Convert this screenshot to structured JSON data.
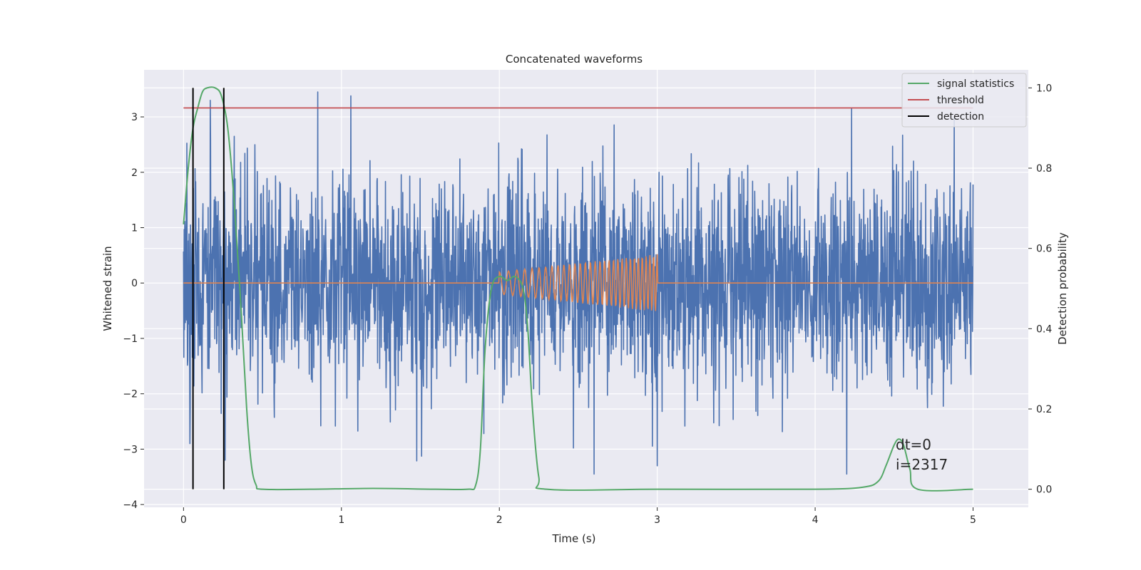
{
  "chart_data": {
    "type": "line",
    "title": "Concatenated waveforms",
    "xlabel": "Time (s)",
    "ylabel": "Whitened strain",
    "y2label": "Detection probability",
    "xlim": [
      -0.25,
      5.35
    ],
    "ylim": [
      -4.05,
      3.85
    ],
    "y2lim": [
      -0.045,
      1.045
    ],
    "x_ticks": [
      0,
      1,
      2,
      3,
      4,
      5
    ],
    "y_ticks": [
      -4,
      -3,
      -2,
      -1,
      0,
      1,
      2,
      3
    ],
    "y2_ticks": [
      0.0,
      0.2,
      0.4,
      0.6,
      0.8,
      1.0
    ],
    "x_tick_labels": [
      "0",
      "1",
      "2",
      "3",
      "4",
      "5"
    ],
    "y_tick_labels": [
      "−4",
      "−3",
      "−2",
      "−1",
      "0",
      "1",
      "2",
      "3"
    ],
    "y2_tick_labels": [
      "0.0",
      "0.2",
      "0.4",
      "0.6",
      "0.8",
      "1.0"
    ],
    "grid": true,
    "legend_position": "top-right",
    "series": [
      {
        "name": "",
        "axis": "left",
        "color": "#4c72b0",
        "kind": "noise",
        "x_range": [
          0,
          5
        ],
        "std": 0.95,
        "min": -3.65,
        "max": 3.45,
        "peaks": [
          {
            "x": 0.17,
            "y": 3.3
          },
          {
            "x": 0.85,
            "y": 3.45
          },
          {
            "x": 1.06,
            "y": 3.38
          },
          {
            "x": 4.23,
            "y": 3.15
          },
          {
            "x": 4.88,
            "y": 3.0
          },
          {
            "x": 2.6,
            "y": -3.45
          },
          {
            "x": 3.0,
            "y": -3.3
          },
          {
            "x": 4.2,
            "y": -3.45
          },
          {
            "x": 0.04,
            "y": -2.9
          }
        ]
      },
      {
        "name": "",
        "axis": "left",
        "color": "#dd8452",
        "kind": "chirp",
        "x_range": [
          0,
          5
        ],
        "chirp_x_range": [
          2.0,
          3.0
        ],
        "amplitude_start": 0.2,
        "amplitude_end": 0.52,
        "cycles": 30
      },
      {
        "name": "signal statistics",
        "axis": "right",
        "color": "#55a868",
        "x": [
          0.0,
          0.03,
          0.06,
          0.09,
          0.12,
          0.15,
          0.2,
          0.24,
          0.28,
          0.32,
          0.36,
          0.4,
          0.43,
          0.46,
          0.5,
          0.8,
          1.2,
          1.6,
          1.8,
          1.85,
          1.88,
          1.91,
          1.95,
          2.0,
          2.05,
          2.1,
          2.15,
          2.18,
          2.21,
          2.25,
          2.3,
          3.0,
          4.0,
          4.3,
          4.4,
          4.45,
          4.5,
          4.53,
          4.56,
          4.6,
          4.65,
          5.0
        ],
        "y": [
          0.66,
          0.8,
          0.9,
          0.95,
          0.99,
          1.0,
          1.0,
          0.98,
          0.9,
          0.72,
          0.48,
          0.2,
          0.06,
          0.01,
          0.0,
          0.0,
          0.002,
          0.0,
          0.0,
          0.01,
          0.1,
          0.35,
          0.5,
          0.53,
          0.52,
          0.53,
          0.5,
          0.4,
          0.2,
          0.03,
          0.0,
          0.0,
          0.0,
          0.005,
          0.02,
          0.06,
          0.11,
          0.125,
          0.11,
          0.05,
          0.0,
          0.0
        ]
      },
      {
        "name": "threshold",
        "axis": "right",
        "color": "#c44e52",
        "x": [
          0,
          5
        ],
        "y": [
          0.95,
          0.95
        ]
      },
      {
        "name": "detection",
        "axis": "right",
        "color": "#000000",
        "vlines": [
          0.06,
          0.255
        ],
        "y_range": [
          0.0,
          1.0
        ]
      }
    ],
    "annotations": [
      "dt=0",
      "i=2317"
    ]
  }
}
